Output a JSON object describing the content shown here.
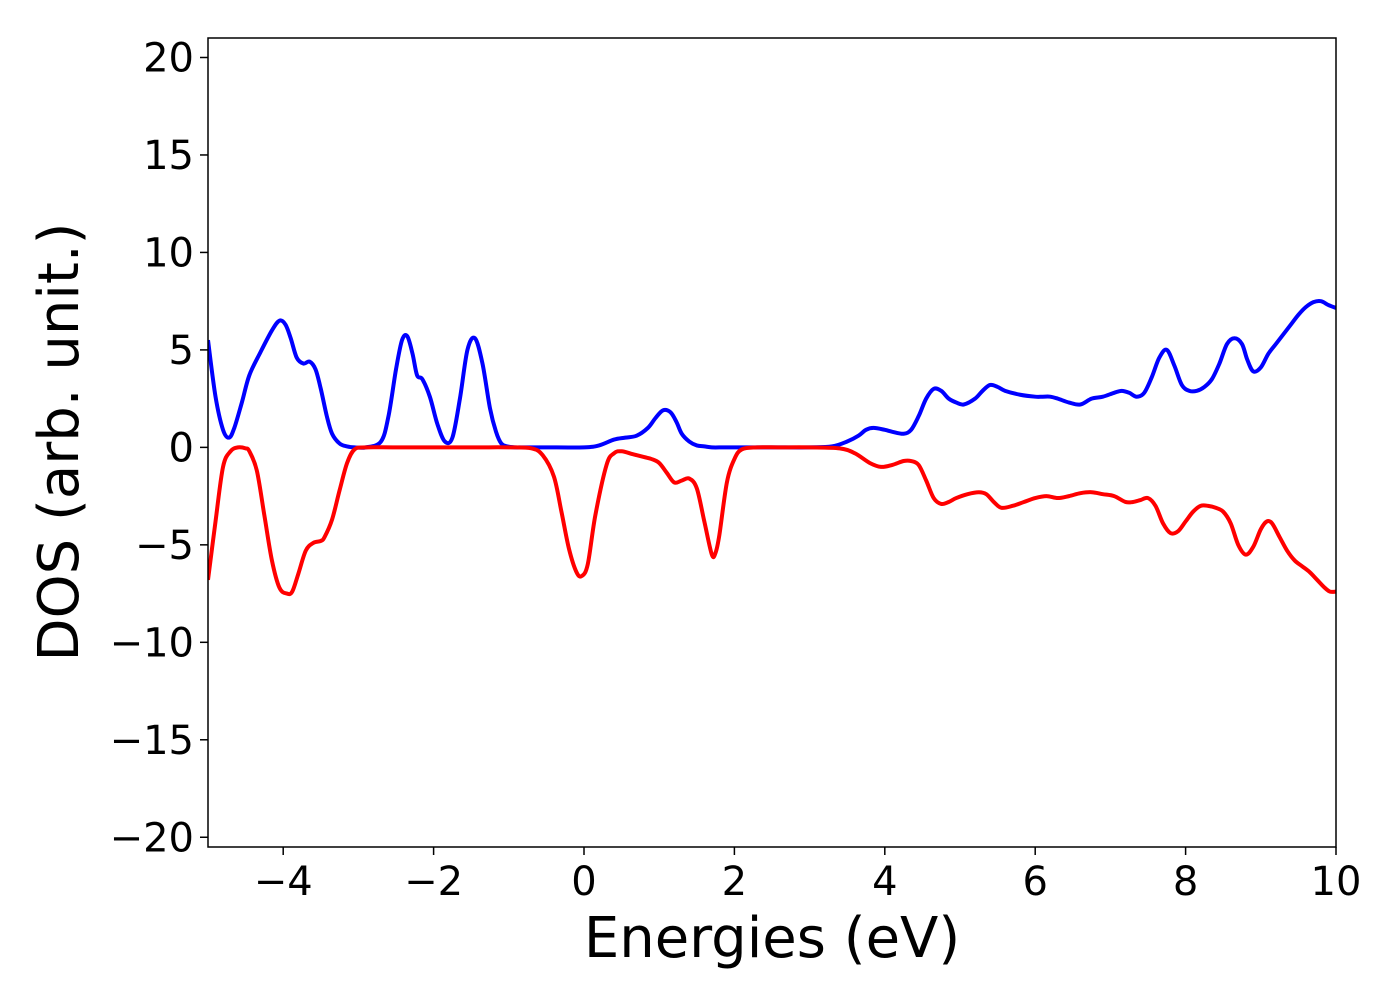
{
  "chart_data": {
    "type": "line",
    "title": "",
    "xlabel": "Energies (eV)",
    "ylabel": "DOS (arb. unit.)",
    "xlim": [
      -5,
      10
    ],
    "ylim": [
      -20.5,
      21
    ],
    "xticks": [
      -4,
      -2,
      0,
      2,
      4,
      6,
      8,
      10
    ],
    "xtick_labels": [
      "−4",
      "−2",
      "0",
      "2",
      "4",
      "6",
      "8",
      "10"
    ],
    "yticks": [
      -20,
      -15,
      -10,
      -5,
      0,
      5,
      10,
      15,
      20
    ],
    "ytick_labels": [
      "−20",
      "−15",
      "−10",
      "−5",
      "0",
      "5",
      "10",
      "15",
      "20"
    ],
    "grid": false,
    "legend": "none",
    "series": [
      {
        "color": "#0000ff",
        "x": [
          -5.0,
          -4.9,
          -4.8,
          -4.72,
          -4.65,
          -4.55,
          -4.45,
          -4.3,
          -4.15,
          -4.05,
          -3.97,
          -3.9,
          -3.82,
          -3.73,
          -3.65,
          -3.57,
          -3.5,
          -3.42,
          -3.35,
          -3.25,
          -3.15,
          -3.05,
          -2.9,
          -2.7,
          -2.6,
          -2.5,
          -2.42,
          -2.35,
          -2.28,
          -2.22,
          -2.15,
          -2.05,
          -1.95,
          -1.85,
          -1.75,
          -1.65,
          -1.55,
          -1.45,
          -1.35,
          -1.25,
          -1.17,
          -1.1,
          -1.02,
          -0.92,
          -0.82,
          -0.7,
          -0.5,
          0.0,
          0.2,
          0.4,
          0.55,
          0.7,
          0.85,
          0.95,
          1.05,
          1.15,
          1.23,
          1.3,
          1.4,
          1.5,
          1.6,
          1.7,
          1.85,
          2.0,
          2.5,
          3.0,
          3.3,
          3.5,
          3.65,
          3.75,
          3.85,
          4.0,
          4.1,
          4.25,
          4.35,
          4.45,
          4.55,
          4.65,
          4.75,
          4.85,
          4.95,
          5.05,
          5.2,
          5.3,
          5.4,
          5.5,
          5.6,
          5.8,
          6.0,
          6.1,
          6.2,
          6.3,
          6.45,
          6.6,
          6.75,
          6.9,
          7.05,
          7.15,
          7.25,
          7.35,
          7.45,
          7.55,
          7.65,
          7.75,
          7.85,
          7.95,
          8.05,
          8.15,
          8.25,
          8.35,
          8.45,
          8.55,
          8.65,
          8.75,
          8.82,
          8.9,
          9.0,
          9.1,
          9.2,
          9.3,
          9.4,
          9.5,
          9.6,
          9.7,
          9.8,
          9.9,
          10.0
        ],
        "y": [
          5.5,
          2.6,
          0.9,
          0.5,
          1.0,
          2.3,
          3.7,
          4.9,
          6.0,
          6.5,
          6.3,
          5.6,
          4.6,
          4.3,
          4.4,
          4.0,
          3.0,
          1.6,
          0.7,
          0.2,
          0.05,
          0.0,
          0.0,
          0.3,
          1.6,
          4.0,
          5.5,
          5.7,
          4.8,
          3.7,
          3.5,
          2.6,
          1.2,
          0.3,
          0.5,
          2.5,
          5.0,
          5.6,
          4.3,
          2.0,
          0.8,
          0.2,
          0.05,
          0.0,
          0.0,
          0.0,
          0.0,
          0.0,
          0.1,
          0.4,
          0.5,
          0.6,
          1.0,
          1.5,
          1.9,
          1.8,
          1.3,
          0.7,
          0.3,
          0.1,
          0.05,
          0.0,
          0.0,
          0.0,
          0.0,
          0.0,
          0.05,
          0.3,
          0.6,
          0.9,
          1.0,
          0.9,
          0.8,
          0.7,
          0.9,
          1.6,
          2.5,
          3.0,
          2.9,
          2.5,
          2.3,
          2.2,
          2.5,
          2.9,
          3.2,
          3.1,
          2.9,
          2.7,
          2.6,
          2.6,
          2.6,
          2.5,
          2.3,
          2.2,
          2.5,
          2.6,
          2.8,
          2.9,
          2.8,
          2.6,
          2.8,
          3.6,
          4.6,
          5.0,
          4.2,
          3.2,
          2.9,
          2.9,
          3.1,
          3.5,
          4.3,
          5.3,
          5.6,
          5.3,
          4.5,
          3.9,
          4.1,
          4.8,
          5.3,
          5.8,
          6.3,
          6.8,
          7.2,
          7.45,
          7.5,
          7.3,
          7.15
        ]
      },
      {
        "color": "#ff0000",
        "x": [
          -5.0,
          -4.9,
          -4.8,
          -4.7,
          -4.6,
          -4.5,
          -4.45,
          -4.35,
          -4.25,
          -4.15,
          -4.05,
          -3.95,
          -3.88,
          -3.8,
          -3.7,
          -3.6,
          -3.5,
          -3.45,
          -3.35,
          -3.25,
          -3.15,
          -3.05,
          -2.9,
          -2.5,
          -1.5,
          -1.0,
          -0.7,
          -0.55,
          -0.4,
          -0.3,
          -0.2,
          -0.1,
          -0.03,
          0.05,
          0.15,
          0.3,
          0.4,
          0.5,
          0.65,
          0.8,
          0.9,
          1.0,
          1.1,
          1.2,
          1.3,
          1.4,
          1.5,
          1.6,
          1.7,
          1.75,
          1.8,
          1.9,
          2.0,
          2.1,
          2.3,
          2.6,
          3.0,
          3.4,
          3.6,
          3.8,
          3.95,
          4.1,
          4.25,
          4.35,
          4.45,
          4.55,
          4.65,
          4.75,
          4.85,
          4.95,
          5.1,
          5.25,
          5.35,
          5.45,
          5.55,
          5.7,
          5.85,
          6.0,
          6.15,
          6.3,
          6.45,
          6.6,
          6.75,
          6.9,
          7.05,
          7.2,
          7.3,
          7.4,
          7.5,
          7.6,
          7.7,
          7.8,
          7.9,
          8.0,
          8.1,
          8.2,
          8.3,
          8.4,
          8.5,
          8.6,
          8.7,
          8.8,
          8.9,
          9.0,
          9.08,
          9.15,
          9.25,
          9.35,
          9.45,
          9.55,
          9.65,
          9.75,
          9.85,
          9.92,
          10.0
        ],
        "y": [
          -6.8,
          -3.8,
          -1.0,
          -0.2,
          0.0,
          -0.05,
          -0.2,
          -1.2,
          -3.5,
          -5.8,
          -7.2,
          -7.5,
          -7.4,
          -6.5,
          -5.3,
          -4.9,
          -4.8,
          -4.6,
          -3.7,
          -2.2,
          -0.8,
          -0.1,
          0.0,
          0.0,
          0.0,
          0.0,
          -0.05,
          -0.4,
          -1.5,
          -3.3,
          -5.2,
          -6.4,
          -6.6,
          -6.0,
          -3.5,
          -0.9,
          -0.3,
          -0.2,
          -0.35,
          -0.5,
          -0.6,
          -0.8,
          -1.3,
          -1.8,
          -1.7,
          -1.6,
          -2.1,
          -3.8,
          -5.5,
          -5.4,
          -4.5,
          -1.8,
          -0.6,
          -0.1,
          0.0,
          0.0,
          0.0,
          -0.05,
          -0.3,
          -0.8,
          -1.0,
          -0.9,
          -0.7,
          -0.7,
          -0.9,
          -1.7,
          -2.6,
          -2.9,
          -2.8,
          -2.6,
          -2.4,
          -2.3,
          -2.4,
          -2.8,
          -3.1,
          -3.0,
          -2.8,
          -2.6,
          -2.5,
          -2.6,
          -2.5,
          -2.35,
          -2.3,
          -2.4,
          -2.5,
          -2.8,
          -2.8,
          -2.7,
          -2.6,
          -3.0,
          -3.9,
          -4.4,
          -4.3,
          -3.8,
          -3.3,
          -3.0,
          -3.0,
          -3.1,
          -3.3,
          -3.9,
          -5.0,
          -5.5,
          -5.1,
          -4.2,
          -3.8,
          -3.9,
          -4.6,
          -5.3,
          -5.8,
          -6.1,
          -6.4,
          -6.8,
          -7.2,
          -7.4,
          -7.4
        ]
      }
    ]
  }
}
